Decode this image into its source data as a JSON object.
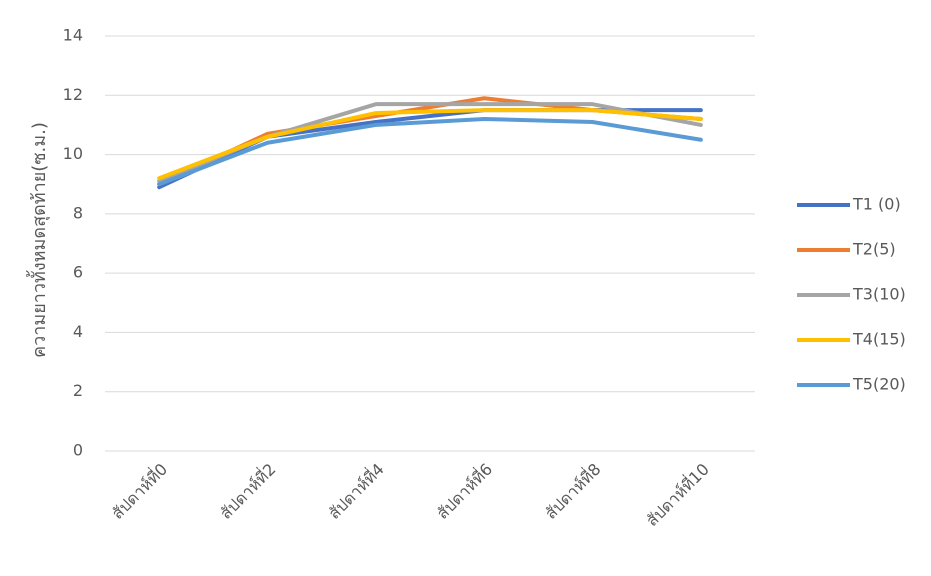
{
  "chart_data": {
    "type": "line",
    "y_label": "ความยาวทั้งหมดสุดท้าย(ซ.ม.)",
    "categories": [
      "สัปดาห์ที่0",
      "สัปดาห์ที่2",
      "สัปดาห์ที่4",
      "สัปดาห์ที่6",
      "สัปดาห์ที่8",
      "สัปดาห์ที่10"
    ],
    "series": [
      {
        "name": "T1 (0)",
        "color": "#4472c4",
        "values": [
          8.9,
          10.6,
          11.1,
          11.5,
          11.5,
          11.5
        ]
      },
      {
        "name": "T2(5)",
        "color": "#ed7d31",
        "values": [
          9.0,
          10.7,
          11.3,
          11.9,
          11.5,
          11.2
        ]
      },
      {
        "name": "T3(10)",
        "color": "#a5a5a5",
        "values": [
          9.1,
          10.6,
          11.7,
          11.7,
          11.7,
          11.0
        ]
      },
      {
        "name": "T4(15)",
        "color": "#ffc000",
        "values": [
          9.2,
          10.6,
          11.4,
          11.5,
          11.5,
          11.2
        ]
      },
      {
        "name": "T5(20)",
        "color": "#5b9bd5",
        "values": [
          9.0,
          10.4,
          11.0,
          11.2,
          11.1,
          10.5
        ]
      }
    ],
    "ylim": [
      0,
      14
    ],
    "yticks": [
      0,
      2,
      4,
      6,
      8,
      10,
      12,
      14
    ],
    "grid": true,
    "legend": "right"
  }
}
